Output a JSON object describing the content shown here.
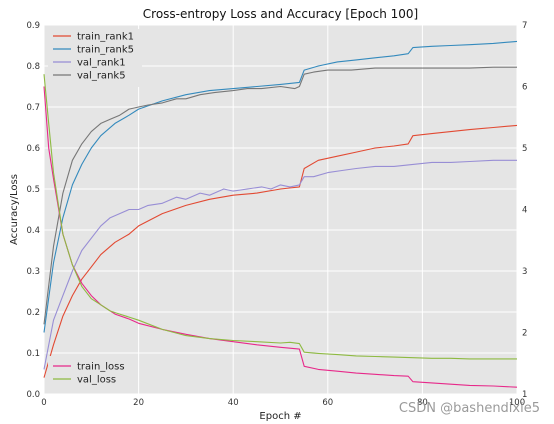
{
  "chart_data": {
    "type": "line",
    "title": "Cross-entropy Loss and Accuracy [Epoch 100]",
    "xlabel": "Epoch #",
    "ylabel_left": "Accuracy/Loss",
    "ylabel_right": "",
    "xlim": [
      0,
      100
    ],
    "ylim_left": [
      0.0,
      0.9
    ],
    "ylim_right": [
      1,
      7
    ],
    "x_ticks": [
      "0",
      "20",
      "40",
      "60",
      "80",
      "100"
    ],
    "y_ticks_left": [
      "0.0",
      "0.1",
      "0.2",
      "0.3",
      "0.4",
      "0.5",
      "0.6",
      "0.7",
      "0.8",
      "0.9"
    ],
    "y_ticks_right": [
      "1",
      "2",
      "3",
      "4",
      "5",
      "6",
      "7"
    ],
    "grid": true,
    "legend_top": {
      "placement": "top-left",
      "items": [
        "train_rank1",
        "train_rank5",
        "val_rank1",
        "val_rank5"
      ]
    },
    "legend_bottom": {
      "placement": "bottom-left",
      "items": [
        "train_loss",
        "val_loss"
      ]
    },
    "series": [
      {
        "name": "train_rank1",
        "axis": "left",
        "color": "#e24a33",
        "x": [
          0,
          2,
          4,
          6,
          8,
          10,
          12,
          15,
          18,
          20,
          25,
          30,
          35,
          40,
          45,
          50,
          54,
          55,
          58,
          62,
          66,
          70,
          74,
          77,
          78,
          82,
          86,
          90,
          95,
          100
        ],
        "y": [
          0.04,
          0.12,
          0.19,
          0.24,
          0.28,
          0.31,
          0.34,
          0.37,
          0.39,
          0.41,
          0.44,
          0.46,
          0.475,
          0.485,
          0.49,
          0.5,
          0.505,
          0.55,
          0.57,
          0.58,
          0.59,
          0.6,
          0.605,
          0.61,
          0.63,
          0.635,
          0.64,
          0.645,
          0.65,
          0.655
        ]
      },
      {
        "name": "train_rank5",
        "axis": "left",
        "color": "#348abd",
        "x": [
          0,
          2,
          4,
          6,
          8,
          10,
          12,
          15,
          18,
          20,
          25,
          30,
          35,
          40,
          45,
          50,
          54,
          55,
          58,
          62,
          66,
          70,
          74,
          77,
          78,
          82,
          86,
          90,
          95,
          100
        ],
        "y": [
          0.15,
          0.32,
          0.43,
          0.51,
          0.56,
          0.6,
          0.63,
          0.66,
          0.68,
          0.695,
          0.715,
          0.73,
          0.74,
          0.745,
          0.75,
          0.755,
          0.76,
          0.79,
          0.8,
          0.81,
          0.815,
          0.82,
          0.825,
          0.83,
          0.845,
          0.848,
          0.85,
          0.852,
          0.855,
          0.86
        ]
      },
      {
        "name": "val_rank1",
        "axis": "left",
        "color": "#988ed5",
        "x": [
          0,
          2,
          4,
          6,
          8,
          10,
          12,
          14,
          16,
          18,
          20,
          22,
          25,
          28,
          30,
          33,
          35,
          38,
          40,
          43,
          46,
          48,
          50,
          52,
          54,
          55,
          57,
          60,
          63,
          66,
          70,
          74,
          78,
          82,
          86,
          90,
          95,
          100
        ],
        "y": [
          0.06,
          0.18,
          0.24,
          0.3,
          0.35,
          0.38,
          0.41,
          0.43,
          0.44,
          0.45,
          0.45,
          0.46,
          0.465,
          0.48,
          0.475,
          0.49,
          0.485,
          0.5,
          0.495,
          0.5,
          0.505,
          0.5,
          0.51,
          0.505,
          0.51,
          0.53,
          0.53,
          0.54,
          0.545,
          0.55,
          0.555,
          0.555,
          0.56,
          0.565,
          0.565,
          0.567,
          0.57,
          0.57
        ]
      },
      {
        "name": "val_rank5",
        "axis": "left",
        "color": "#777777",
        "x": [
          0,
          2,
          4,
          6,
          8,
          10,
          12,
          14,
          16,
          18,
          20,
          22,
          25,
          28,
          30,
          33,
          36,
          40,
          43,
          46,
          50,
          53,
          54,
          55,
          57,
          60,
          65,
          70,
          75,
          80,
          85,
          90,
          95,
          100
        ],
        "y": [
          0.17,
          0.36,
          0.49,
          0.57,
          0.61,
          0.64,
          0.66,
          0.67,
          0.68,
          0.695,
          0.7,
          0.705,
          0.71,
          0.72,
          0.72,
          0.73,
          0.735,
          0.74,
          0.745,
          0.745,
          0.75,
          0.745,
          0.75,
          0.78,
          0.785,
          0.79,
          0.79,
          0.795,
          0.795,
          0.795,
          0.795,
          0.795,
          0.797,
          0.797
        ]
      },
      {
        "name": "train_loss",
        "axis": "right",
        "color": "#e7298a",
        "x": [
          0,
          1,
          2,
          4,
          6,
          8,
          10,
          12,
          15,
          18,
          20,
          25,
          30,
          35,
          40,
          45,
          50,
          54,
          55,
          58,
          62,
          66,
          70,
          74,
          77,
          78,
          82,
          86,
          90,
          95,
          100
        ],
        "y": [
          6.0,
          5.0,
          4.5,
          3.6,
          3.1,
          2.8,
          2.6,
          2.45,
          2.3,
          2.22,
          2.15,
          2.05,
          1.97,
          1.9,
          1.85,
          1.8,
          1.76,
          1.73,
          1.45,
          1.4,
          1.37,
          1.34,
          1.32,
          1.3,
          1.29,
          1.2,
          1.18,
          1.16,
          1.14,
          1.13,
          1.11
        ]
      },
      {
        "name": "val_loss",
        "axis": "right",
        "color": "#8eba42",
        "x": [
          0,
          1,
          2,
          4,
          6,
          8,
          10,
          12,
          14,
          16,
          18,
          20,
          25,
          30,
          35,
          40,
          45,
          50,
          52,
          54,
          55,
          58,
          62,
          66,
          70,
          74,
          78,
          82,
          86,
          90,
          95,
          100
        ],
        "y": [
          6.2,
          5.4,
          4.6,
          3.6,
          3.1,
          2.75,
          2.55,
          2.45,
          2.35,
          2.3,
          2.25,
          2.2,
          2.05,
          1.95,
          1.9,
          1.87,
          1.85,
          1.83,
          1.84,
          1.82,
          1.68,
          1.66,
          1.64,
          1.62,
          1.61,
          1.6,
          1.59,
          1.58,
          1.58,
          1.57,
          1.57,
          1.57
        ]
      }
    ]
  },
  "watermark": "CSDN @bashendixie5"
}
